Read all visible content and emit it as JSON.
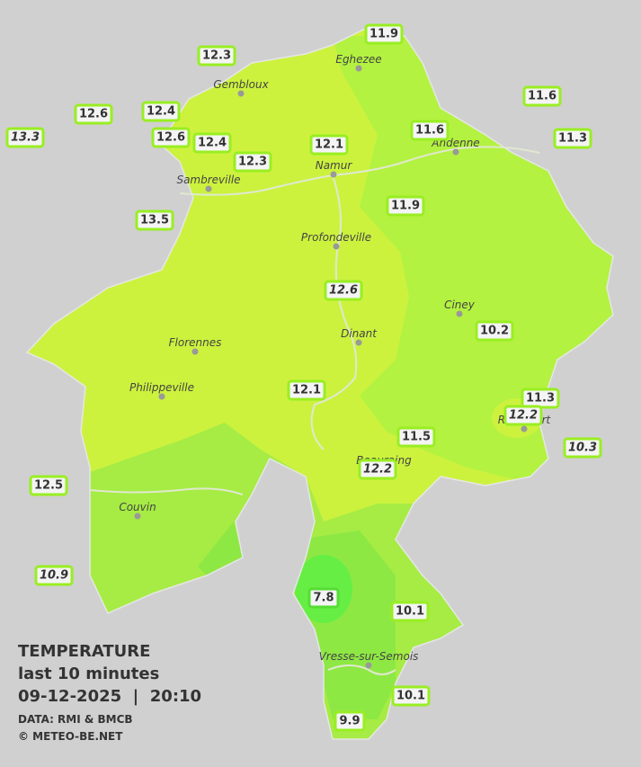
{
  "legend": {
    "title": "TEMPERATURE",
    "subtitle": "last 10 minutes",
    "datetime": "09-12-2025  |  20:10",
    "source": "DATA: RMI & BMCB",
    "copyright": "© METEO-BE.NET"
  },
  "cities": [
    "Eghezee",
    "Gembloux",
    "Andenne",
    "Namur",
    "Sambreville",
    "Profondeville",
    "Ciney",
    "Dinant",
    "Florennes",
    "Philippeville",
    "Rochefort",
    "Beauraing",
    "Couvin",
    "Vresse-sur-Semois"
  ],
  "stations": [
    {
      "label": "11.9",
      "italic": false
    },
    {
      "label": "12.3",
      "italic": false
    },
    {
      "label": "12.6",
      "italic": false
    },
    {
      "label": "12.4",
      "italic": false
    },
    {
      "label": "13.3",
      "italic": true
    },
    {
      "label": "12.6",
      "italic": false
    },
    {
      "label": "12.4",
      "italic": false
    },
    {
      "label": "12.1",
      "italic": false
    },
    {
      "label": "12.3",
      "italic": false
    },
    {
      "label": "11.6",
      "italic": false
    },
    {
      "label": "11.6",
      "italic": false
    },
    {
      "label": "11.3",
      "italic": false
    },
    {
      "label": "13.5",
      "italic": false
    },
    {
      "label": "11.9",
      "italic": false
    },
    {
      "label": "12.6",
      "italic": true
    },
    {
      "label": "10.2",
      "italic": false
    },
    {
      "label": "12.1",
      "italic": false
    },
    {
      "label": "11.3",
      "italic": false
    },
    {
      "label": "12.2",
      "italic": true
    },
    {
      "label": "11.5",
      "italic": false
    },
    {
      "label": "10.3",
      "italic": true
    },
    {
      "label": "12.2",
      "italic": true
    },
    {
      "label": "12.5",
      "italic": false
    },
    {
      "label": "10.9",
      "italic": true
    },
    {
      "label": "7.8",
      "italic": false
    },
    {
      "label": "10.1",
      "italic": false
    },
    {
      "label": "10.1",
      "italic": false
    },
    {
      "label": "9.9",
      "italic": false
    }
  ]
}
